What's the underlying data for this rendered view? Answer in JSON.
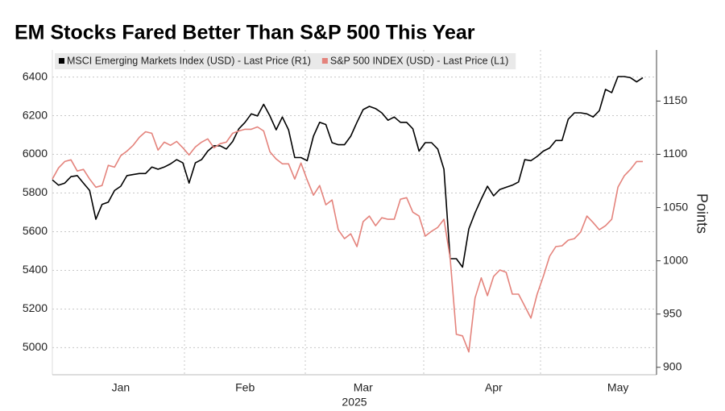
{
  "chart_data": {
    "type": "line",
    "title": "EM Stocks Fared Better Than S&P 500 This Year",
    "x_label": "2025",
    "y2_label": "Points",
    "categories": [
      null,
      null,
      null,
      null,
      null,
      null,
      null,
      null,
      null,
      null,
      null,
      "Jan",
      null,
      null,
      null,
      null,
      null,
      null,
      null,
      null,
      null,
      null,
      null,
      null,
      null,
      null,
      null,
      null,
      null,
      null,
      null,
      "Feb",
      null,
      null,
      null,
      null,
      null,
      null,
      null,
      null,
      null,
      null,
      null,
      null,
      null,
      null,
      null,
      null,
      null,
      null,
      "Mar",
      null,
      null,
      null,
      null,
      null,
      null,
      null,
      null,
      null,
      null,
      null,
      null,
      null,
      null,
      null,
      null,
      null,
      null,
      null,
      null,
      "Apr",
      null,
      null,
      null,
      null,
      null,
      null,
      null,
      null,
      null,
      null,
      null,
      null,
      null,
      null,
      null,
      null,
      null,
      null,
      null,
      "May",
      null,
      null,
      null,
      null
    ],
    "series": [
      {
        "name": "MSCI Emerging Markets Index (USD) - Last Price (R1)",
        "color": "#000000",
        "axis": "y2",
        "values": [
          1076,
          1071,
          1073,
          1079,
          1080,
          1073,
          1066,
          1039,
          1053,
          1055,
          1066,
          1070,
          1080,
          1081,
          1082,
          1082,
          1088,
          1086,
          1088,
          1091,
          1095,
          1092,
          1073,
          1092,
          1095,
          1103,
          1108,
          1108,
          1105,
          1112,
          1124,
          1130,
          1138,
          1136,
          1147,
          1136,
          1123,
          1135,
          1123,
          1097,
          1097,
          1094,
          1117,
          1130,
          1128,
          1111,
          1109,
          1109,
          1117,
          1130,
          1142,
          1145,
          1143,
          1139,
          1132,
          1135,
          1130,
          1130,
          1124,
          1103,
          1111,
          1111,
          1105,
          1086,
          1002,
          1002,
          994,
          1030,
          1045,
          1058,
          1070,
          1061,
          1067,
          1069,
          1071,
          1074,
          1095,
          1094,
          1098,
          1103,
          1106,
          1113,
          1113,
          1133,
          1139,
          1139,
          1138,
          1135,
          1141,
          1161,
          1158,
          1173,
          1173,
          1172,
          1168,
          1172
        ]
      },
      {
        "name": "S&P 500 INDEX (USD) - Last Price (L1)",
        "color": "#e4837c",
        "values": [
          5872,
          5930,
          5963,
          5972,
          5914,
          5922,
          5872,
          5830,
          5839,
          5943,
          5934,
          5993,
          6017,
          6047,
          6088,
          6117,
          6109,
          6022,
          6063,
          6047,
          6067,
          6034,
          5997,
          6038,
          6063,
          6080,
          6034,
          6055,
          6063,
          6109,
          6121,
          6130,
          6130,
          6142,
          6121,
          6013,
          5976,
          5951,
          5951,
          5872,
          5955,
          5868,
          5789,
          5839,
          5739,
          5764,
          5610,
          5564,
          5589,
          5523,
          5652,
          5681,
          5631,
          5672,
          5664,
          5664,
          5768,
          5776,
          5701,
          5681,
          5577,
          5602,
          5622,
          5664,
          5464,
          5069,
          5061,
          4978,
          5257,
          5361,
          5269,
          5369,
          5402,
          5390,
          5277,
          5277,
          5215,
          5153,
          5277,
          5369,
          5473,
          5523,
          5527,
          5556,
          5564,
          5598,
          5681,
          5647,
          5610,
          5631,
          5664,
          5830,
          5889,
          5922,
          5963,
          5963
        ]
      }
    ],
    "ylim": [
      4860,
      6540
    ],
    "yticks": [
      5000,
      5200,
      5400,
      5600,
      5800,
      6000,
      6200,
      6400
    ],
    "y2lim": [
      893,
      1198
    ],
    "y2ticks": [
      900,
      950,
      1000,
      1050,
      1100,
      1150
    ],
    "grid": true,
    "legend": "top-left"
  }
}
